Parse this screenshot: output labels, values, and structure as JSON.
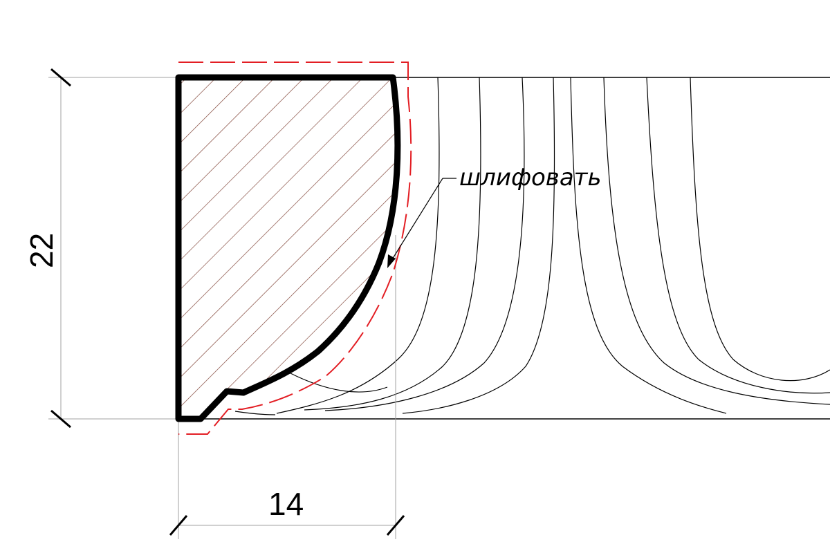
{
  "dimensions": {
    "height_value": "22",
    "width_value": "14"
  },
  "annotation": {
    "note": "шлифовать"
  },
  "colors": {
    "outline": "#000000",
    "hatch": "#7a3b2e",
    "sanding_line": "#e31e24",
    "extension_line": "#a0a0a0",
    "grain_line": "#000000"
  }
}
